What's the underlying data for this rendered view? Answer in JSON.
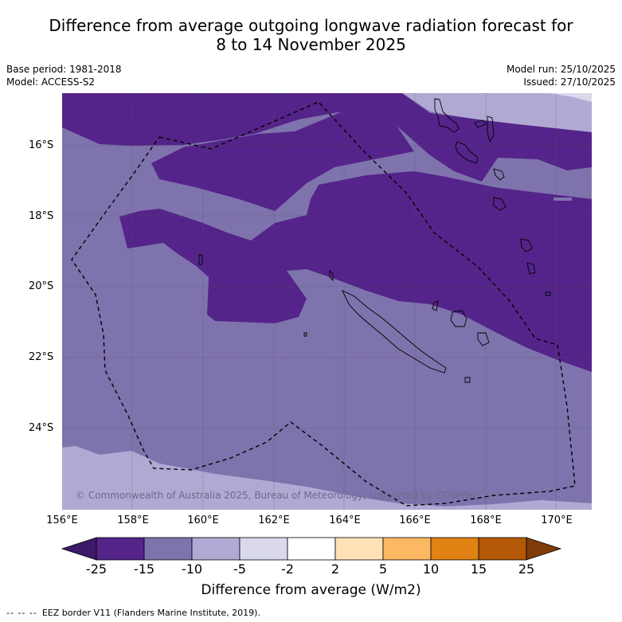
{
  "title_line1": "Difference from average outgoing longwave radiation forecast for",
  "title_line2": "8 to 14 November 2025",
  "base_period": "Base period: 1981-2018",
  "model": "Model: ACCESS-S2",
  "model_run": "Model run: 25/10/2025",
  "issued": "Issued: 27/10/2025",
  "copyright": "© Commonwealth of Australia 2025, Bureau of Meteorology, supported by COSPPac",
  "lat_labels": [
    "16°S",
    "18°S",
    "20°S",
    "22°S",
    "24°S"
  ],
  "lon_labels": [
    "156°E",
    "158°E",
    "160°E",
    "162°E",
    "164°E",
    "166°E",
    "168°E",
    "170°E"
  ],
  "colorbar": {
    "ticks": [
      "-25",
      "-15",
      "-10",
      "-5",
      "-2",
      "2",
      "5",
      "10",
      "15",
      "25"
    ],
    "label": "Difference from average (W/m2)",
    "colors": {
      "below_min": "#3d1a6b",
      "c1": "#54248a",
      "c2": "#7f73ad",
      "c3": "#b1a9d3",
      "c4": "#d9d9eb",
      "c5": "#ffffff",
      "c6": "#fee2b6",
      "c7": "#fdb863",
      "c8": "#e08214",
      "c9": "#b35806",
      "above_max": "#7f3b08"
    }
  },
  "footer_glyph": "--  --  --",
  "footer_text": "EEZ border V11 (Flanders Marine Institute, 2019)."
}
